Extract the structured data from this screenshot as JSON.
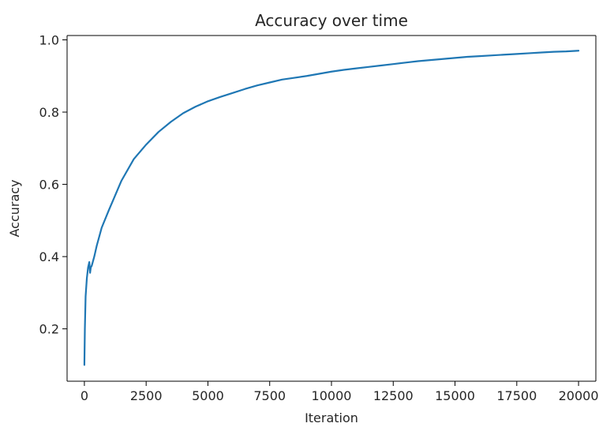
{
  "chart_data": {
    "type": "line",
    "title": "Accuracy over time",
    "xlabel": "Iteration",
    "ylabel": "Accuracy",
    "xlim": [
      -700,
      20700
    ],
    "ylim": [
      0.055,
      1.012
    ],
    "xticks": [
      0,
      2500,
      5000,
      7500,
      10000,
      12500,
      15000,
      17500,
      20000
    ],
    "xtick_labels": [
      "0",
      "2500",
      "5000",
      "7500",
      "10000",
      "12500",
      "15000",
      "17500",
      "20000"
    ],
    "yticks": [
      0.2,
      0.4,
      0.6,
      0.8,
      1.0
    ],
    "ytick_labels": [
      "0.2",
      "0.4",
      "0.6",
      "0.8",
      "1.0"
    ],
    "grid": false,
    "series": [
      {
        "color": "#1f77b4",
        "x": [
          0,
          20,
          50,
          100,
          150,
          200,
          230,
          260,
          300,
          400,
          500,
          700,
          1000,
          1500,
          2000,
          2500,
          3000,
          3500,
          4000,
          4500,
          5000,
          5500,
          6000,
          6500,
          7000,
          7500,
          8000,
          8500,
          9000,
          9500,
          10000,
          10500,
          11000,
          11500,
          12000,
          12500,
          13000,
          13500,
          14000,
          14500,
          15000,
          15500,
          16000,
          16500,
          17000,
          17500,
          18000,
          18500,
          19000,
          19500,
          20000
        ],
        "y": [
          0.1,
          0.2,
          0.29,
          0.34,
          0.37,
          0.385,
          0.355,
          0.37,
          0.375,
          0.4,
          0.43,
          0.48,
          0.53,
          0.61,
          0.67,
          0.71,
          0.745,
          0.773,
          0.797,
          0.815,
          0.83,
          0.842,
          0.853,
          0.864,
          0.874,
          0.882,
          0.89,
          0.895,
          0.9,
          0.906,
          0.912,
          0.917,
          0.921,
          0.925,
          0.929,
          0.933,
          0.937,
          0.941,
          0.944,
          0.947,
          0.95,
          0.953,
          0.955,
          0.957,
          0.959,
          0.961,
          0.963,
          0.965,
          0.967,
          0.968,
          0.97
        ]
      }
    ]
  }
}
